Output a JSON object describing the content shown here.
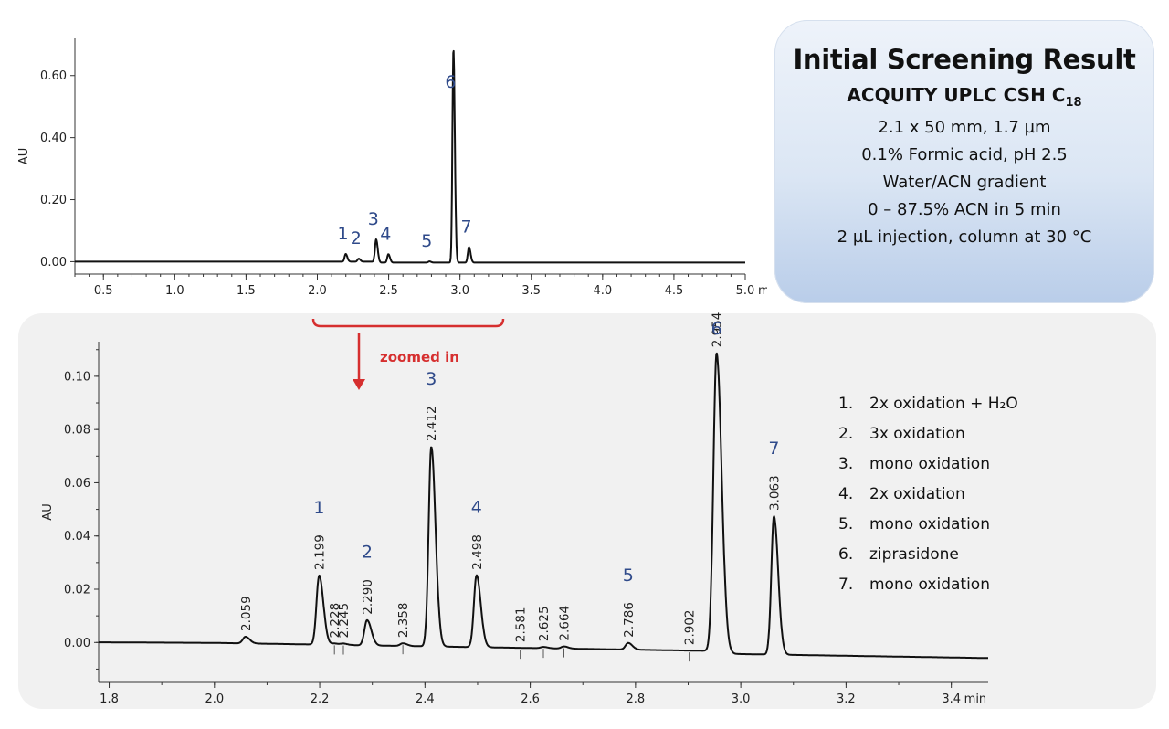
{
  "info_box": {
    "title": "Initial Screening Result",
    "column_name": "ACQUITY UPLC CSH C",
    "column_subscript": "18",
    "lines": [
      "2.1  x  50 mm, 1.7 µm",
      "0.1% Formic acid, pH 2.5",
      "Water/ACN gradient",
      "0 – 87.5% ACN in 5 min",
      "2 µL injection, column at 30 °C"
    ]
  },
  "zoom_note": "zoomed in",
  "legend": [
    {
      "num": "1.",
      "text": "2x oxidation + H₂O"
    },
    {
      "num": "2.",
      "text": "3x oxidation"
    },
    {
      "num": "3.",
      "text": "mono oxidation"
    },
    {
      "num": "4.",
      "text": "2x oxidation"
    },
    {
      "num": "5.",
      "text": "mono oxidation"
    },
    {
      "num": "6.",
      "text": "ziprasidone"
    },
    {
      "num": "7.",
      "text": "mono oxidation"
    }
  ],
  "colors": {
    "peak_label": "#2f4a8a",
    "accent_red": "#d62f2f",
    "trace": "#111111"
  },
  "chart_data": [
    {
      "type": "line",
      "title": "",
      "xlabel": "",
      "ylabel": "AU",
      "x_unit": "min",
      "xlim": [
        0.3,
        5.0
      ],
      "ylim": [
        -0.04,
        0.72
      ],
      "xticks": [
        0.5,
        1.0,
        1.5,
        2.0,
        2.5,
        3.0,
        3.5,
        4.0,
        4.5,
        5.0
      ],
      "xtick_labels": [
        "0.5",
        "1.0",
        "1.5",
        "2.0",
        "2.5",
        "3.0",
        "3.5",
        "4.0",
        "4.5",
        "5.0"
      ],
      "yticks": [
        0.0,
        0.2,
        0.4,
        0.6
      ],
      "ytick_labels": [
        "0.00",
        "0.20",
        "0.40",
        "0.60"
      ],
      "baseline": 0.0,
      "peaks": [
        {
          "label": "1",
          "rt": 2.199,
          "height": 0.025
        },
        {
          "label": "2",
          "rt": 2.29,
          "height": 0.01
        },
        {
          "label": "3",
          "rt": 2.412,
          "height": 0.075
        },
        {
          "label": "4",
          "rt": 2.498,
          "height": 0.027
        },
        {
          "label": "5",
          "rt": 2.786,
          "height": 0.004
        },
        {
          "label": "6",
          "rt": 2.954,
          "height": 0.69
        },
        {
          "label": "7",
          "rt": 3.063,
          "height": 0.05
        }
      ]
    },
    {
      "type": "line",
      "title": "",
      "xlabel": "",
      "ylabel": "AU",
      "x_unit": "min",
      "xlim": [
        1.78,
        3.47
      ],
      "ylim": [
        -0.015,
        0.113
      ],
      "xticks": [
        1.8,
        2.0,
        2.2,
        2.4,
        2.6,
        2.8,
        3.0,
        3.2,
        3.4
      ],
      "xtick_labels": [
        "1.8",
        "2.0",
        "2.2",
        "2.4",
        "2.6",
        "2.8",
        "3.0",
        "3.2",
        "3.4"
      ],
      "yticks": [
        0.0,
        0.02,
        0.04,
        0.06,
        0.08,
        0.1
      ],
      "ytick_labels": [
        "0.00",
        "0.02",
        "0.04",
        "0.06",
        "0.08",
        "0.10"
      ],
      "peaks": [
        {
          "rt": 2.059,
          "height": 0.0025,
          "rt_label": "2.059"
        },
        {
          "rt": 2.199,
          "height": 0.026,
          "rt_label": "2.199",
          "label": "1"
        },
        {
          "rt": 2.228,
          "height": 0.0005,
          "rt_label": "2.228"
        },
        {
          "rt": 2.245,
          "height": 0.0005,
          "rt_label": "2.245"
        },
        {
          "rt": 2.29,
          "height": 0.0095,
          "rt_label": "2.290",
          "label": "2"
        },
        {
          "rt": 2.358,
          "height": 0.001,
          "rt_label": "2.358"
        },
        {
          "rt": 2.412,
          "height": 0.075,
          "rt_label": "2.412",
          "label": "3"
        },
        {
          "rt": 2.498,
          "height": 0.027,
          "rt_label": "2.498",
          "label": "4"
        },
        {
          "rt": 2.581,
          "height": 0.0,
          "rt_label": "2.581"
        },
        {
          "rt": 2.625,
          "height": 0.0005,
          "rt_label": "2.625"
        },
        {
          "rt": 2.664,
          "height": 0.0008,
          "rt_label": "2.664"
        },
        {
          "rt": 2.786,
          "height": 0.0025,
          "rt_label": "2.786",
          "label": "5"
        },
        {
          "rt": 2.902,
          "height": 0.0,
          "rt_label": "2.902"
        },
        {
          "rt": 2.954,
          "height": 0.113,
          "rt_label": "2.954",
          "label": "6"
        },
        {
          "rt": 3.063,
          "height": 0.052,
          "rt_label": "3.063",
          "label": "7"
        }
      ]
    }
  ]
}
